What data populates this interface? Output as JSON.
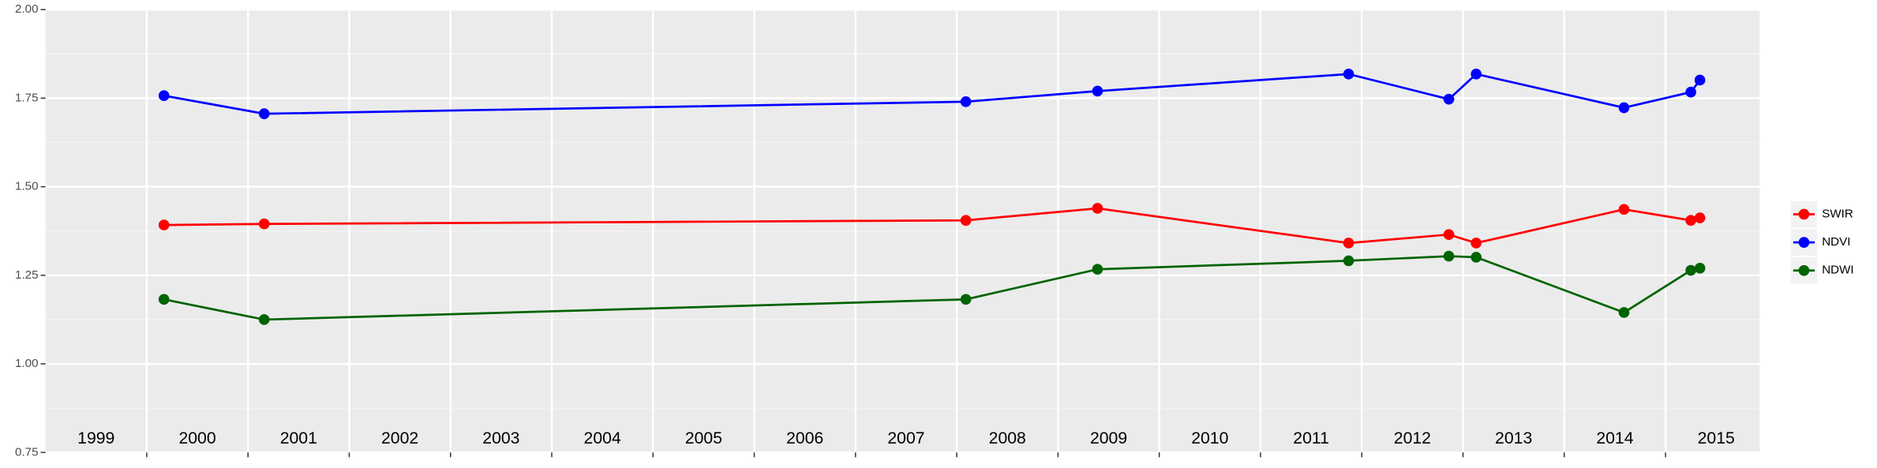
{
  "chart_data": {
    "type": "line",
    "x": [
      2000.17,
      2001.16,
      2008.09,
      2009.39,
      2011.87,
      2012.86,
      2013.13,
      2014.59,
      2015.25,
      2015.34
    ],
    "series": [
      {
        "name": "SWIR",
        "color": "#ff0000",
        "values": [
          1.392,
          1.395,
          1.405,
          1.439,
          1.341,
          1.365,
          1.341,
          1.436,
          1.405,
          1.412
        ]
      },
      {
        "name": "NDVI",
        "color": "#0000ff",
        "values": [
          1.757,
          1.706,
          1.74,
          1.77,
          1.818,
          1.747,
          1.818,
          1.723,
          1.767,
          1.801
        ]
      },
      {
        "name": "NDWI",
        "color": "#006400",
        "values": [
          1.182,
          1.125,
          1.182,
          1.267,
          1.291,
          1.304,
          1.301,
          1.145,
          1.264,
          1.27
        ]
      }
    ],
    "xlim": [
      1999.0,
      2015.93
    ],
    "xticks": [
      {
        "value": 1999.5,
        "label": "1999"
      },
      {
        "value": 2000.5,
        "label": "2000"
      },
      {
        "value": 2001.5,
        "label": "2001"
      },
      {
        "value": 2002.5,
        "label": "2002"
      },
      {
        "value": 2003.5,
        "label": "2003"
      },
      {
        "value": 2004.5,
        "label": "2004"
      },
      {
        "value": 2005.5,
        "label": "2005"
      },
      {
        "value": 2006.5,
        "label": "2006"
      },
      {
        "value": 2007.5,
        "label": "2007"
      },
      {
        "value": 2008.5,
        "label": "2008"
      },
      {
        "value": 2009.5,
        "label": "2009"
      },
      {
        "value": 2010.5,
        "label": "2010"
      },
      {
        "value": 2011.5,
        "label": "2011"
      },
      {
        "value": 2012.5,
        "label": "2012"
      },
      {
        "value": 2013.5,
        "label": "2013"
      },
      {
        "value": 2014.5,
        "label": "2014"
      },
      {
        "value": 2015.5,
        "label": "2015"
      }
    ],
    "x_gridlines": [
      2000,
      2001,
      2002,
      2003,
      2004,
      2005,
      2006,
      2007,
      2008,
      2009,
      2010,
      2011,
      2012,
      2013,
      2014,
      2015
    ],
    "ylim": [
      0.75,
      2.0
    ],
    "yticks": [
      {
        "value": 0.75,
        "label": "0.75"
      },
      {
        "value": 1.0,
        "label": "1.00"
      },
      {
        "value": 1.25,
        "label": "1.25"
      },
      {
        "value": 1.5,
        "label": "1.50"
      },
      {
        "value": 1.75,
        "label": "1.75"
      },
      {
        "value": 2.0,
        "label": "2.00"
      }
    ],
    "y_minor_gridlines": [
      0.875,
      1.125,
      1.375,
      1.625,
      1.875
    ],
    "grid": true,
    "legend": "right"
  }
}
